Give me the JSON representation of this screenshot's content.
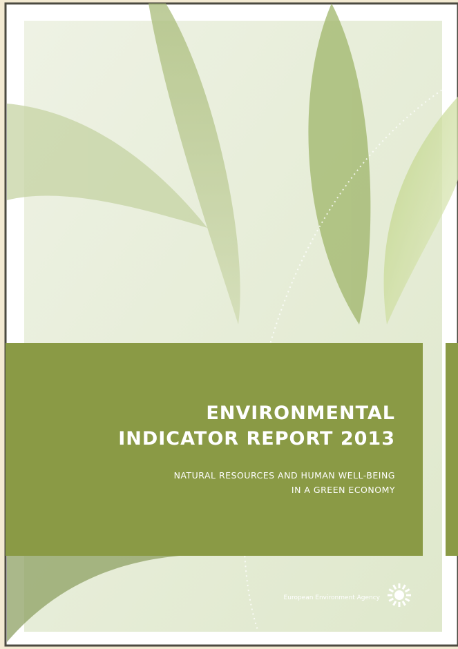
{
  "cover": {
    "title_lines": [
      "ENVIRONMENTAL",
      "INDICATOR REPORT 2013"
    ],
    "subtitle_lines": [
      "NATURAL RESOURCES AND HUMAN WELL-BEING",
      "IN A GREEN ECONOMY"
    ],
    "publisher": "European Environment Agency"
  }
}
